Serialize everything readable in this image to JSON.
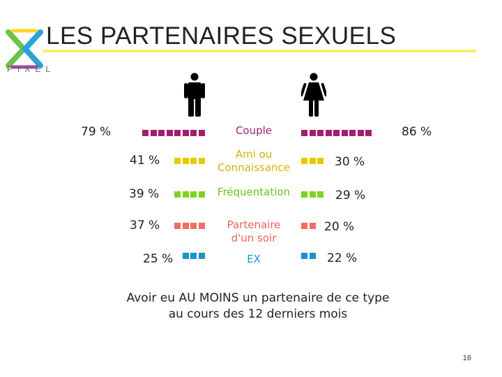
{
  "slide": {
    "title": "LES PARTENAIRES SEXUELS",
    "logo_text": "PIXEL",
    "page_number": "16",
    "footnote_line1": "Avoir eu AU MOINS un partenaire de ce type",
    "footnote_line2": "au cours des 12 derniers mois"
  },
  "chart_data": {
    "type": "bar",
    "orientation": "horizontal-butterfly",
    "categories": [
      {
        "label_line1": "Couple",
        "label_line2": "",
        "color": "#a0206e",
        "men": 79,
        "women": 86,
        "men_label": "79 %",
        "women_label": "86 %"
      },
      {
        "label_line1": "Ami ou",
        "label_line2": "Connaissance",
        "color": "#e8c800",
        "men": 41,
        "women": 30,
        "men_label": "41 %",
        "women_label": "30 %"
      },
      {
        "label_line1": "Fréquentation",
        "label_line2": "",
        "color": "#7ed321",
        "men": 39,
        "women": 29,
        "men_label": "39 %",
        "women_label": "29 %"
      },
      {
        "label_line1": "Partenaire",
        "label_line2": "d'un soir",
        "color": "#f26b63",
        "men": 37,
        "women": 20,
        "men_label": "37 %",
        "women_label": "20 %"
      },
      {
        "label_line1": "EX",
        "label_line2": "",
        "color": "#1a93c9",
        "men": 25,
        "women": 22,
        "men_label": "25 %",
        "women_label": "22 %"
      }
    ]
  }
}
